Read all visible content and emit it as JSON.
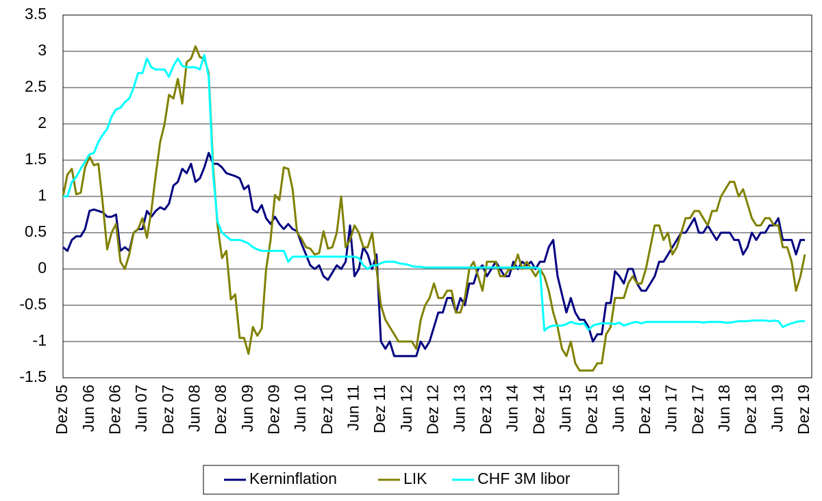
{
  "chart_data": {
    "type": "line",
    "categories": [
      "Dez 05",
      null,
      null,
      null,
      null,
      null,
      "Jun 06",
      null,
      null,
      null,
      null,
      null,
      "Dez 06",
      null,
      null,
      null,
      null,
      null,
      "Jun 07",
      null,
      null,
      null,
      null,
      null,
      "Dez 07",
      null,
      null,
      null,
      null,
      null,
      "Jun 08",
      null,
      null,
      null,
      null,
      null,
      "Dez 08",
      null,
      null,
      null,
      null,
      null,
      "Jun 09",
      null,
      null,
      null,
      null,
      null,
      "Dez 09",
      null,
      null,
      null,
      null,
      null,
      "Jun 10",
      null,
      null,
      null,
      null,
      null,
      "Dez 10",
      null,
      null,
      null,
      null,
      null,
      "Jun 11",
      null,
      null,
      null,
      null,
      null,
      "Dez 11",
      null,
      null,
      null,
      null,
      null,
      "Jun 12",
      null,
      null,
      null,
      null,
      null,
      "Dez 12",
      null,
      null,
      null,
      null,
      null,
      "Jun 13",
      null,
      null,
      null,
      null,
      null,
      "Dez 13",
      null,
      null,
      null,
      null,
      null,
      "Jun 14",
      null,
      null,
      null,
      null,
      null,
      "Dez 14",
      null,
      null,
      null,
      null,
      null,
      "Jun 15",
      null,
      null,
      null,
      null,
      null,
      "Dez 15",
      null,
      null,
      null,
      null,
      null,
      "Jun 16",
      null,
      null,
      null,
      null,
      null,
      "Dez 16",
      null,
      null,
      null,
      null,
      null,
      "Jun 17",
      null,
      null,
      null,
      null,
      null,
      "Dez 17",
      null,
      null,
      null,
      null,
      null,
      "Jun 18",
      null,
      null,
      null,
      null,
      null,
      "Dez 18",
      null,
      null,
      null,
      null,
      null,
      "Jun 19",
      null,
      null,
      null,
      null,
      null,
      "Dez 19"
    ],
    "series": [
      {
        "name": "Kerninflation",
        "color": "#000080",
        "values": [
          0.3,
          0.25,
          0.4,
          0.45,
          0.45,
          0.55,
          0.8,
          0.82,
          0.8,
          0.78,
          0.72,
          0.72,
          0.75,
          0.25,
          0.3,
          0.25,
          0.5,
          0.55,
          0.55,
          0.8,
          0.72,
          0.8,
          0.85,
          0.82,
          0.9,
          1.15,
          1.2,
          1.38,
          1.32,
          1.45,
          1.2,
          1.25,
          1.4,
          1.6,
          1.45,
          1.45,
          1.4,
          1.32,
          1.3,
          1.28,
          1.25,
          1.1,
          1.15,
          0.82,
          0.78,
          0.88,
          0.7,
          0.62,
          0.72,
          0.62,
          0.55,
          0.62,
          0.55,
          0.52,
          0.35,
          0.2,
          0.05,
          0,
          0.05,
          -0.1,
          -0.15,
          -0.05,
          0.05,
          0,
          0.1,
          0.6,
          -0.1,
          0,
          0.3,
          0.2,
          0,
          0.2,
          -1,
          -1.1,
          -1,
          -1.2,
          -1.2,
          -1.2,
          -1.2,
          -1.2,
          -1.2,
          -1,
          -1.1,
          -1,
          -0.8,
          -0.6,
          -0.6,
          -0.4,
          -0.4,
          -0.6,
          -0.4,
          -0.5,
          -0.2,
          -0.2,
          0,
          0.05,
          -0.1,
          0,
          0.1,
          0,
          -0.1,
          -0.1,
          0.1,
          0,
          0.1,
          0.05,
          0.1,
          0,
          0.1,
          0.1,
          0.3,
          0.4,
          -0.1,
          -0.35,
          -0.6,
          -0.4,
          -0.6,
          -0.7,
          -0.7,
          -0.8,
          -1,
          -0.9,
          -0.9,
          -0.47,
          -0.47,
          -0.03,
          -0.1,
          -0.2,
          0,
          0,
          -0.2,
          -0.3,
          -0.3,
          -0.2,
          -0.1,
          0.1,
          0.1,
          0.2,
          0.3,
          0.4,
          0.5,
          0.5,
          0.6,
          0.7,
          0.5,
          0.5,
          0.6,
          0.5,
          0.4,
          0.5,
          0.5,
          0.5,
          0.4,
          0.4,
          0.2,
          0.3,
          0.5,
          0.4,
          0.5,
          0.5,
          0.6,
          0.6,
          0.7,
          0.4,
          0.4,
          0.4,
          0.2,
          0.4,
          0.4
        ]
      },
      {
        "name": "LIK",
        "color": "#808000",
        "values": [
          1.0,
          1.3,
          1.38,
          1.03,
          1.05,
          1.4,
          1.55,
          1.43,
          1.45,
          0.9,
          0.27,
          0.5,
          0.62,
          0.1,
          0,
          0.2,
          0.5,
          0.55,
          0.7,
          0.43,
          0.8,
          1.3,
          1.75,
          2.0,
          2.4,
          2.35,
          2.62,
          2.28,
          2.85,
          2.9,
          3.07,
          2.92,
          2.9,
          2.7,
          1.4,
          0.6,
          0.15,
          0.25,
          -0.42,
          -0.35,
          -0.95,
          -0.95,
          -1.17,
          -0.8,
          -0.92,
          -0.82,
          0,
          0.4,
          1.02,
          0.95,
          1.4,
          1.38,
          1.1,
          0.5,
          0.42,
          0.3,
          0.28,
          0.2,
          0.22,
          0.52,
          0.28,
          0.3,
          0.5,
          1.0,
          0.3,
          0.4,
          0.6,
          0.5,
          0.3,
          0.3,
          0.5,
          0,
          -0.5,
          -0.7,
          -0.8,
          -0.9,
          -1,
          -1,
          -1,
          -1,
          -1.1,
          -0.7,
          -0.5,
          -0.4,
          -0.2,
          -0.4,
          -0.4,
          -0.3,
          -0.3,
          -0.6,
          -0.6,
          -0.4,
          0,
          0.1,
          -0.1,
          -0.3,
          0.1,
          0.1,
          0.1,
          -0.1,
          -0.1,
          0,
          0,
          0.2,
          0,
          0.1,
          0,
          -0.1,
          0,
          -0.1,
          -0.3,
          -0.6,
          -0.8,
          -1.1,
          -1.2,
          -1.0,
          -1.3,
          -1.4,
          -1.4,
          -1.4,
          -1.4,
          -1.3,
          -1.3,
          -0.9,
          -0.8,
          -0.4,
          -0.4,
          -0.4,
          -0.2,
          -0.1,
          -0.2,
          -0.2,
          0,
          0.3,
          0.6,
          0.6,
          0.4,
          0.5,
          0.2,
          0.3,
          0.5,
          0.7,
          0.7,
          0.8,
          0.8,
          0.7,
          0.6,
          0.8,
          0.8,
          1.0,
          1.1,
          1.2,
          1.2,
          1.0,
          1.1,
          0.9,
          0.7,
          0.6,
          0.6,
          0.7,
          0.7,
          0.6,
          0.6,
          0.3,
          0.3,
          0.1,
          -0.3,
          -0.1,
          0.2
        ]
      },
      {
        "name": "CHF 3M libor",
        "color": "#00ffff",
        "values": [
          1.0,
          1.0,
          1.2,
          1.27,
          1.38,
          1.48,
          1.58,
          1.6,
          1.75,
          1.85,
          1.93,
          2.1,
          2.2,
          2.22,
          2.3,
          2.35,
          2.5,
          2.7,
          2.7,
          2.9,
          2.78,
          2.75,
          2.75,
          2.75,
          2.65,
          2.8,
          2.9,
          2.8,
          2.78,
          2.78,
          2.78,
          2.75,
          2.95,
          2.65,
          1.3,
          0.65,
          0.5,
          0.45,
          0.4,
          0.4,
          0.4,
          0.38,
          0.35,
          0.3,
          0.27,
          0.25,
          0.25,
          0.25,
          0.25,
          0.25,
          0.25,
          0.1,
          0.17,
          0.17,
          0.17,
          0.17,
          0.17,
          0.17,
          0.17,
          0.17,
          0.17,
          0.17,
          0.17,
          0.17,
          0.17,
          0.17,
          0.17,
          0.15,
          0.05,
          0,
          0.05,
          0.05,
          0.08,
          0.1,
          0.1,
          0.1,
          0.08,
          0.07,
          0.06,
          0.04,
          0.03,
          0.03,
          0.02,
          0.02,
          0.02,
          0.02,
          0.02,
          0.02,
          0.02,
          0.02,
          0.02,
          0.02,
          0.02,
          0.02,
          0.02,
          0.02,
          0.02,
          0.02,
          0.02,
          0.02,
          0.02,
          0.02,
          0.02,
          0.02,
          0.02,
          0.02,
          0.02,
          0.02,
          0,
          -0.85,
          -0.8,
          -0.78,
          -0.78,
          -0.78,
          -0.76,
          -0.73,
          -0.75,
          -0.76,
          -0.75,
          -0.84,
          -0.78,
          -0.76,
          -0.75,
          -0.75,
          -0.75,
          -0.76,
          -0.74,
          -0.78,
          -0.76,
          -0.74,
          -0.73,
          -0.75,
          -0.73,
          -0.73,
          -0.73,
          -0.73,
          -0.73,
          -0.73,
          -0.73,
          -0.73,
          -0.73,
          -0.73,
          -0.73,
          -0.73,
          -0.73,
          -0.74,
          -0.73,
          -0.73,
          -0.73,
          -0.73,
          -0.74,
          -0.74,
          -0.73,
          -0.72,
          -0.72,
          -0.72,
          -0.71,
          -0.71,
          -0.71,
          -0.71,
          -0.72,
          -0.71,
          -0.72,
          -0.8,
          -0.77,
          -0.75,
          -0.73,
          -0.72,
          -0.72
        ]
      }
    ],
    "ylim": [
      -1.5,
      3.5
    ],
    "yticks": [
      3.5,
      3,
      2.5,
      2,
      1.5,
      1,
      0.5,
      0,
      -0.5,
      -1,
      -1.5
    ],
    "grid": true,
    "legend": "bottom"
  }
}
